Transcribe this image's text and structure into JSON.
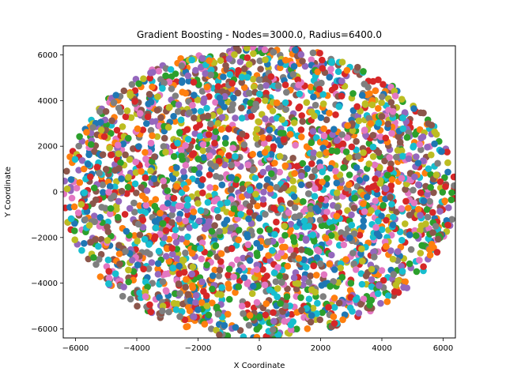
{
  "chart_data": {
    "type": "scatter",
    "title": "Gradient Boosting - Nodes=3000.0, Radius=6400.0",
    "xlabel": "X Coordinate",
    "ylabel": "Y Coordinate",
    "xlim": [
      -6400,
      6400
    ],
    "ylim": [
      -6400,
      6400
    ],
    "x_ticks": [
      -6000,
      -4000,
      -2000,
      0,
      2000,
      4000,
      6000
    ],
    "y_ticks": [
      -6000,
      -4000,
      -2000,
      0,
      2000,
      4000,
      6000
    ],
    "x_tick_labels": [
      "−6000",
      "−4000",
      "−2000",
      "0",
      "2000",
      "4000",
      "6000"
    ],
    "y_tick_labels": [
      "−6000",
      "−4000",
      "−2000",
      "0",
      "2000",
      "4000",
      "6000"
    ],
    "grid": false,
    "legend": "none",
    "node_count": 3000,
    "radius": 6400,
    "distribution": "points scattered uniformly inside a circle of radius 6400 centred at (0, 0)",
    "colors": [
      "#1f77b4",
      "#ff7f0e",
      "#2ca02c",
      "#d62728",
      "#9467bd",
      "#8c564b",
      "#e377c2",
      "#7f7f7f",
      "#bcbd22",
      "#17becf"
    ]
  }
}
